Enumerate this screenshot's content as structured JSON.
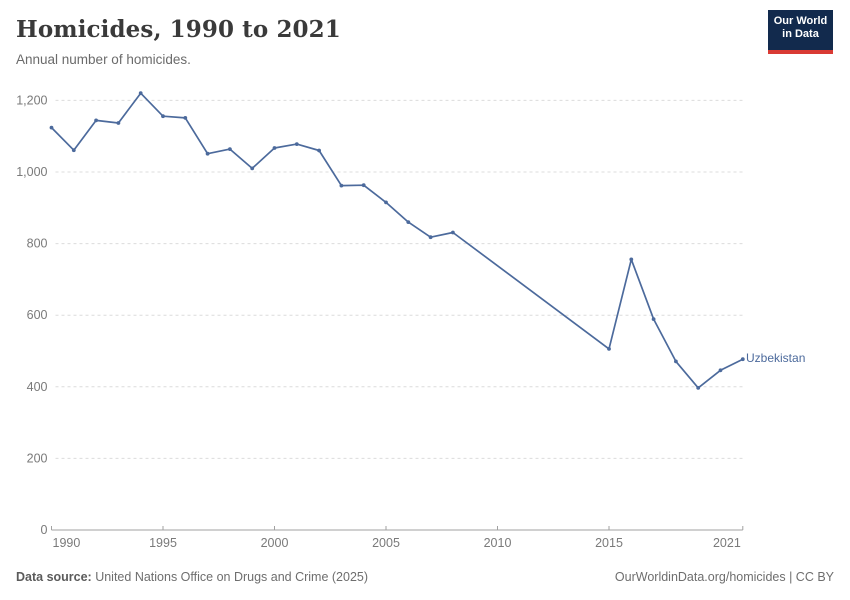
{
  "header": {
    "title": "Homicides, 1990 to 2021",
    "subtitle": "Annual number of homicides."
  },
  "logo": {
    "line1": "Our World",
    "line2": "in Data"
  },
  "colors": {
    "series": "#4C6A9C",
    "grid": "#DCDCDC",
    "axis": "#A1A1A1",
    "axis_text": "#7A7A7A",
    "logo_bg": "#122A4D",
    "logo_accent": "#D93A34"
  },
  "chart_data": {
    "type": "line",
    "title": "Homicides, 1990 to 2021",
    "subtitle": "Annual number of homicides.",
    "xlabel": "",
    "ylabel": "",
    "xlim": [
      1990,
      2021
    ],
    "ylim": [
      0,
      1240
    ],
    "x_ticks": [
      1990,
      1995,
      2000,
      2005,
      2010,
      2015,
      2021
    ],
    "y_ticks": [
      0,
      200,
      400,
      600,
      800,
      1000,
      1200
    ],
    "grid": "horizontal-dashed",
    "legend_position": "end-of-line-label",
    "missing_years_interpolated": [
      2009,
      2010,
      2011,
      2012,
      2013,
      2014
    ],
    "series": [
      {
        "name": "Uzbekistan",
        "color": "#4C6A9C",
        "points": [
          [
            1990,
            1124
          ],
          [
            1991,
            1061
          ],
          [
            1992,
            1144
          ],
          [
            1993,
            1137
          ],
          [
            1994,
            1220
          ],
          [
            1995,
            1156
          ],
          [
            1996,
            1151
          ],
          [
            1997,
            1051
          ],
          [
            1998,
            1064
          ],
          [
            1999,
            1010
          ],
          [
            2000,
            1067
          ],
          [
            2001,
            1078
          ],
          [
            2002,
            1060
          ],
          [
            2003,
            962
          ],
          [
            2004,
            963
          ],
          [
            2005,
            915
          ],
          [
            2006,
            860
          ],
          [
            2007,
            818
          ],
          [
            2008,
            831
          ],
          [
            2015,
            506
          ],
          [
            2016,
            756
          ],
          [
            2017,
            589
          ],
          [
            2018,
            471
          ],
          [
            2019,
            397
          ],
          [
            2020,
            446
          ],
          [
            2021,
            477
          ]
        ]
      }
    ]
  },
  "footer": {
    "source_label": "Data source:",
    "source_text": " United Nations Office on Drugs and Crime (2025)",
    "credit": "OurWorldinData.org/homicides | CC BY"
  }
}
